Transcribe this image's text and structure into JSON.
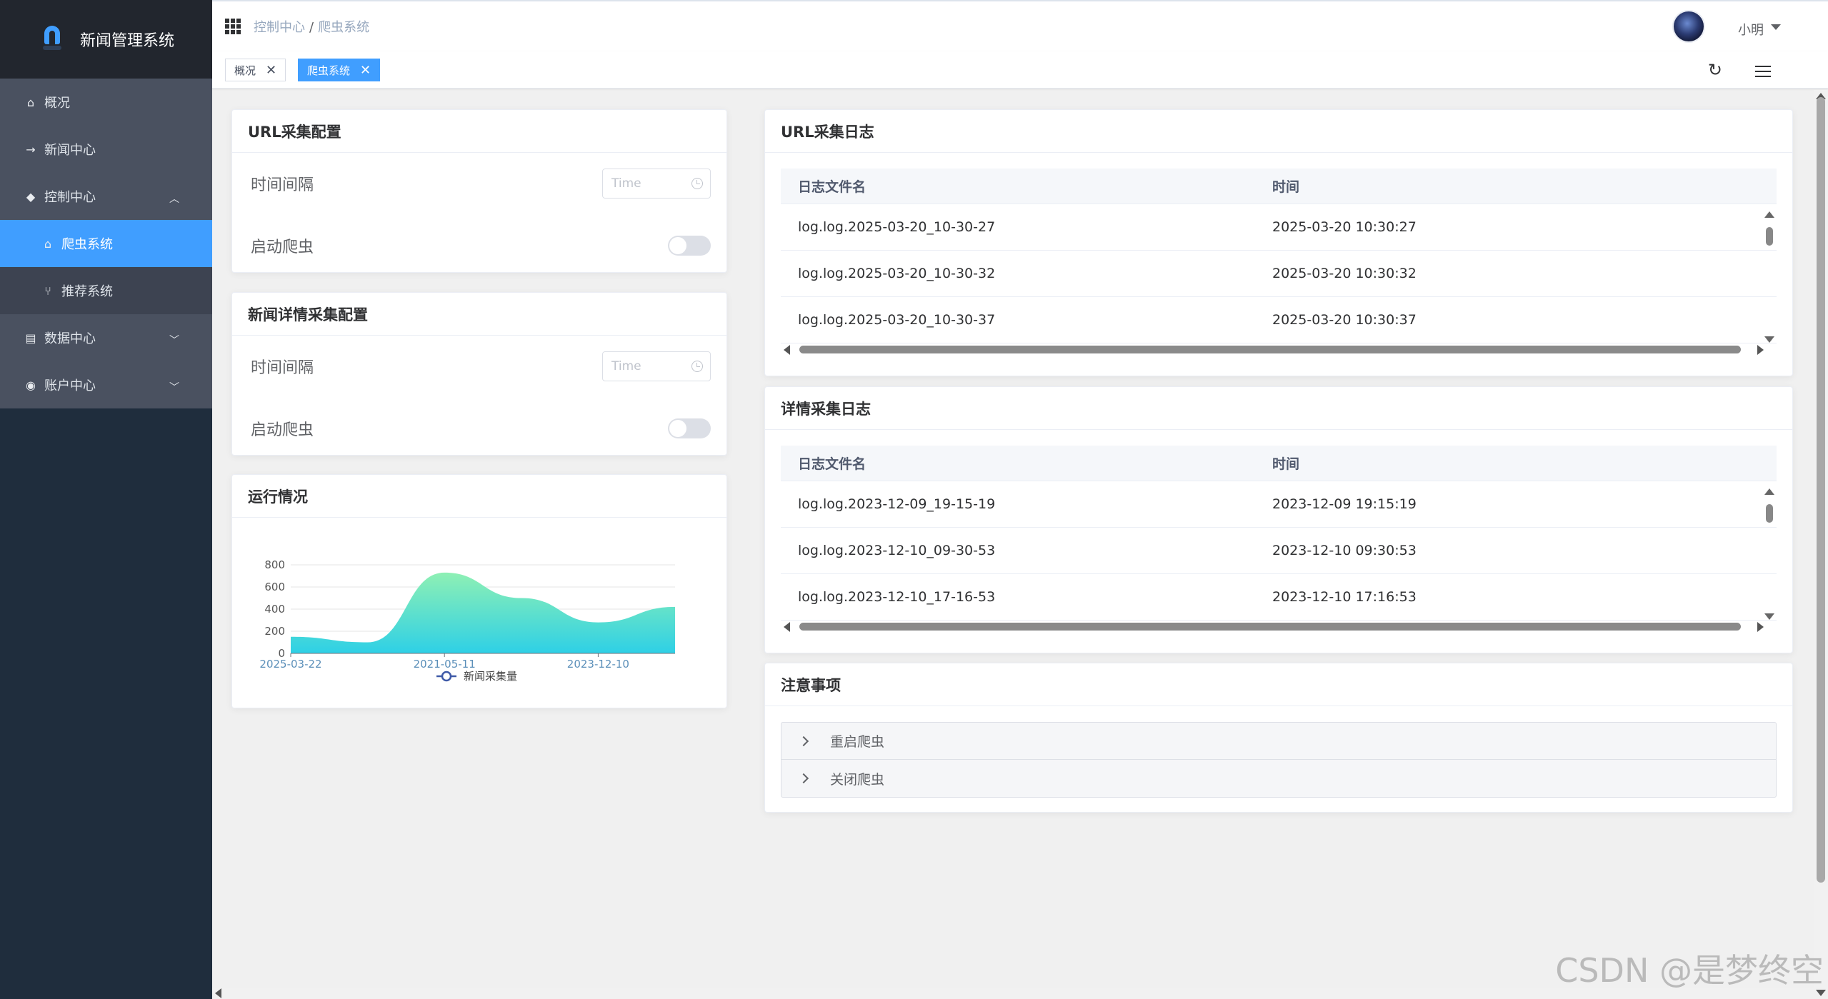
{
  "app": {
    "title": "新闻管理系统"
  },
  "sidebar": {
    "items": [
      {
        "label": "概况",
        "icon": "home-icon"
      },
      {
        "label": "新闻中心",
        "icon": "arrow-right-icon"
      },
      {
        "label": "控制中心",
        "icon": "cube-icon"
      },
      {
        "label": "爬虫系统",
        "icon": "bank-icon"
      },
      {
        "label": "推荐系统",
        "icon": "share-icon"
      },
      {
        "label": "数据中心",
        "icon": "list-icon"
      },
      {
        "label": "账户中心",
        "icon": "user-icon"
      }
    ],
    "active_color": "#409eff"
  },
  "header": {
    "breadcrumb": [
      "控制中心",
      "爬虫系统"
    ],
    "user": "小明"
  },
  "tags": [
    {
      "label": "概况"
    },
    {
      "label": "爬虫系统"
    }
  ],
  "url_config": {
    "title": "URL采集配置",
    "interval_label": "时间间隔",
    "time_placeholder": "Time",
    "start_label": "启动爬虫"
  },
  "detail_config": {
    "title": "新闻详情采集配置",
    "interval_label": "时间间隔",
    "time_placeholder": "Time",
    "start_label": "启动爬虫"
  },
  "status": {
    "title": "运行情况"
  },
  "chart_data": {
    "type": "area",
    "title": "",
    "x_ticks": [
      "2025-03-22",
      "2021-05-11",
      "2023-12-10"
    ],
    "y_ticks": [
      0,
      200,
      400,
      600,
      800
    ],
    "ylim": [
      0,
      800
    ],
    "series": [
      {
        "name": "新闻采集量",
        "values": [
          150,
          100,
          730,
          500,
          280,
          420
        ]
      }
    ],
    "legend": "bottom-center",
    "grid": true,
    "colors": {
      "top": "#8ef0b4",
      "bottom": "#2ed0e6"
    }
  },
  "url_log": {
    "title": "URL采集日志",
    "columns": [
      "日志文件名",
      "时间"
    ],
    "rows": [
      [
        "log.log.2025-03-20_10-30-27",
        "2025-03-20 10:30:27"
      ],
      [
        "log.log.2025-03-20_10-30-32",
        "2025-03-20 10:30:32"
      ],
      [
        "log.log.2025-03-20_10-30-37",
        "2025-03-20 10:30:37"
      ]
    ]
  },
  "detail_log": {
    "title": "详情采集日志",
    "columns": [
      "日志文件名",
      "时间"
    ],
    "rows": [
      [
        "log.log.2023-12-09_19-15-19",
        "2023-12-09 19:15:19"
      ],
      [
        "log.log.2023-12-10_09-30-53",
        "2023-12-10 09:30:53"
      ],
      [
        "log.log.2023-12-10_17-16-53",
        "2023-12-10 17:16:53"
      ]
    ]
  },
  "notes": {
    "title": "注意事项",
    "items": [
      "重启爬虫",
      "关闭爬虫"
    ]
  },
  "watermark": "CSDN @是梦终空"
}
